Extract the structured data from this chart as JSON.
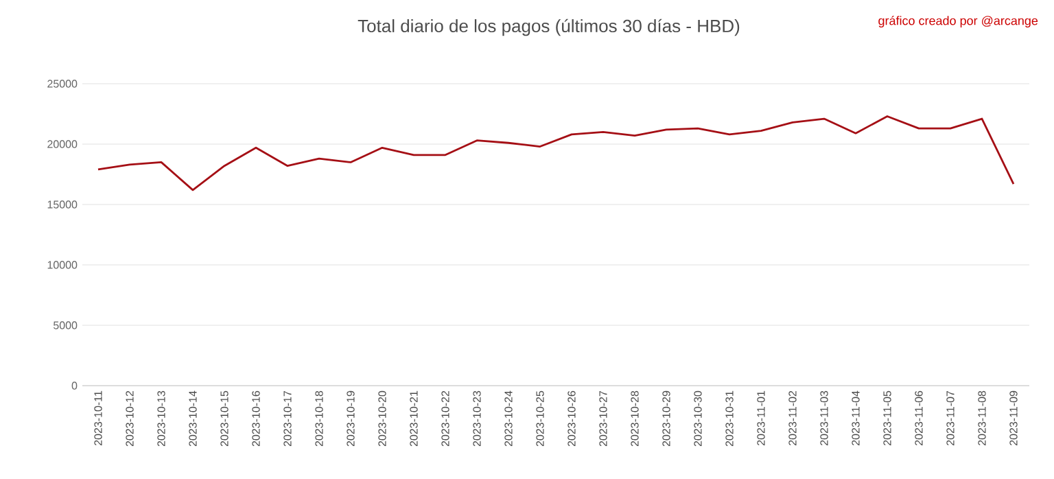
{
  "chart_data": {
    "type": "line",
    "title": "Total diario de los pagos (últimos 30 días - HBD)",
    "annotations": [
      "gráfico creado por @arcange"
    ],
    "categories": [
      "2023-10-11",
      "2023-10-12",
      "2023-10-13",
      "2023-10-14",
      "2023-10-15",
      "2023-10-16",
      "2023-10-17",
      "2023-10-18",
      "2023-10-19",
      "2023-10-20",
      "2023-10-21",
      "2023-10-22",
      "2023-10-23",
      "2023-10-24",
      "2023-10-25",
      "2023-10-26",
      "2023-10-27",
      "2023-10-28",
      "2023-10-29",
      "2023-10-30",
      "2023-10-31",
      "2023-11-01",
      "2023-11-02",
      "2023-11-03",
      "2023-11-04",
      "2023-11-05",
      "2023-11-06",
      "2023-11-07",
      "2023-11-08",
      "2023-11-09"
    ],
    "values": [
      17900,
      18300,
      18500,
      16200,
      18200,
      19700,
      18200,
      18800,
      18500,
      19700,
      19100,
      19100,
      20300,
      20100,
      19800,
      20800,
      21000,
      20700,
      21200,
      21300,
      20800,
      21100,
      21800,
      22100,
      20900,
      22300,
      21300,
      21300,
      22100,
      16700
    ],
    "color": "#a50f15",
    "ylim": [
      0,
      25000
    ],
    "yticks": [
      0,
      5000,
      10000,
      15000,
      20000,
      25000
    ],
    "grid": "y",
    "marker": "none",
    "line_style": "solid"
  }
}
